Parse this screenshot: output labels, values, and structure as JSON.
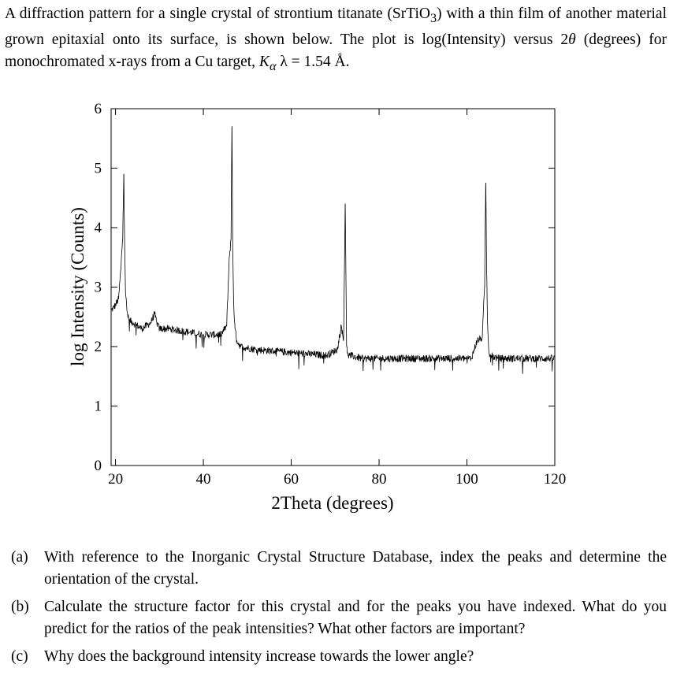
{
  "intro": {
    "p1": "A diffraction pattern for a single crystal of strontium titanate (SrTiO",
    "sub1": "3",
    "p2": ") with a thin film of another material grown epitaxial onto its surface, is shown below. The plot is log(Intensity) versus 2",
    "theta": "θ",
    "p3": " (degrees) for monochromated x-rays from a Cu target, ",
    "k": "K",
    "ksub": "α",
    "p4": " λ = 1.54 Å."
  },
  "chart_data": {
    "type": "line",
    "title": "",
    "xlabel": "2Theta (degrees)",
    "ylabel": "log Intensity (Counts)",
    "xlim": [
      19,
      120
    ],
    "ylim": [
      0,
      6
    ],
    "xticks": [
      20,
      40,
      60,
      80,
      100,
      120
    ],
    "yticks": [
      0,
      1,
      2,
      3,
      4,
      5,
      6
    ],
    "grid": false,
    "series": [
      {
        "x": [
          19.0,
          20.0,
          20.7,
          21.2,
          21.6,
          21.9,
          22.1,
          22.3,
          22.6,
          23.0,
          24.0,
          26.0,
          28.0,
          28.9,
          29.4,
          30.0,
          32.0,
          36.0,
          40.0,
          44.0,
          45.3,
          45.9,
          46.3,
          46.5,
          46.7,
          46.9,
          47.2,
          47.6,
          48.5,
          52.0,
          60.0,
          68.0,
          70.5,
          71.4,
          71.9,
          72.3,
          72.6,
          72.8,
          73.0,
          73.4,
          76.0,
          85.0,
          95.0,
          101.0,
          102.3,
          103.5,
          104.0,
          104.3,
          104.5,
          104.7,
          105.0,
          105.5,
          107.0,
          112.0,
          120.0
        ],
        "y": [
          2.6,
          2.7,
          2.8,
          3.3,
          3.8,
          4.9,
          3.6,
          2.9,
          2.6,
          2.45,
          2.4,
          2.3,
          2.4,
          2.55,
          2.4,
          2.3,
          2.3,
          2.25,
          2.2,
          2.2,
          2.35,
          3.5,
          3.8,
          5.7,
          3.6,
          2.7,
          2.3,
          2.1,
          2.0,
          1.95,
          1.9,
          1.85,
          1.95,
          2.35,
          2.1,
          4.4,
          2.0,
          1.9,
          1.85,
          1.85,
          1.8,
          1.8,
          1.8,
          1.8,
          2.1,
          2.15,
          3.0,
          4.75,
          3.2,
          2.4,
          1.9,
          1.85,
          1.8,
          1.8,
          1.8
        ],
        "noise": 0.06
      }
    ]
  },
  "questions": [
    {
      "label": "(a)",
      "text": "With reference to the Inorganic Crystal Structure Database, index the peaks and determine the orientation of the crystal."
    },
    {
      "label": "(b)",
      "text": "Calculate the structure factor for this crystal and for the peaks you have indexed. What do you predict for the ratios of the peak intensities? What other factors are important?"
    },
    {
      "label": "(c)",
      "text": "Why does the background intensity increase towards the lower angle?"
    }
  ]
}
